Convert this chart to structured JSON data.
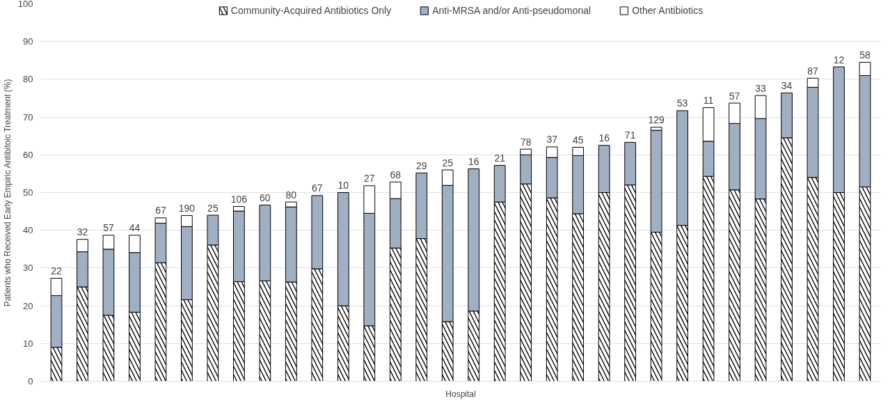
{
  "chart_data": {
    "type": "bar",
    "stacked": true,
    "xlabel": "Hospital",
    "ylabel": "Patients who Received Early Empiric Antibitoic Treatment (%)",
    "categories": [
      null,
      null,
      null,
      null,
      null,
      null,
      null,
      null,
      null,
      null,
      null,
      null,
      null,
      null,
      null,
      null,
      null,
      null,
      null,
      null,
      null,
      null,
      null,
      null,
      null,
      null,
      null,
      null,
      null,
      null,
      null,
      null
    ],
    "series": [
      {
        "name": "Community-Acquired Antibiotics Only",
        "color": "#000000",
        "values": [
          9,
          25,
          17.5,
          18.3,
          31.4,
          21.6,
          36.1,
          26.4,
          26.6,
          26.3,
          29.8,
          20,
          14.7,
          35.3,
          37.8,
          15.8,
          18.6,
          47.5,
          52.3,
          48.6,
          44.4,
          50,
          52,
          39.5,
          41.3,
          54.3,
          50.7,
          48.3,
          64.5,
          54,
          50,
          51.5
        ]
      },
      {
        "name": "Anti-MRSA and/or Anti-pseudomonal",
        "color": "#9fb0c2",
        "values": [
          13.7,
          9.3,
          17.5,
          15.8,
          10.5,
          19.4,
          7.9,
          18.7,
          20.1,
          19.9,
          19.4,
          30,
          29.8,
          13.1,
          17.4,
          36.1,
          37.7,
          9.7,
          7.7,
          10.7,
          15.4,
          12.5,
          11.3,
          27,
          30.4,
          9.3,
          17.6,
          21.3,
          11.9,
          23.9,
          33.3,
          29.5
        ]
      },
      {
        "name": "Other Antibiotics",
        "color": "#ffffff",
        "values": [
          4.6,
          3.3,
          3.7,
          4.6,
          1.4,
          2.9,
          null,
          1.2,
          null,
          1.3,
          null,
          null,
          7.3,
          4.4,
          null,
          4.1,
          null,
          null,
          1.5,
          2.8,
          2.2,
          null,
          null,
          0.8,
          null,
          8.9,
          5.4,
          6.1,
          null,
          2.4,
          null,
          3.5
        ]
      }
    ],
    "annotations": [
      "22",
      "32",
      "57",
      "44",
      "67",
      "190",
      "25",
      "106",
      "60",
      "80",
      "67",
      "10",
      "27",
      "68",
      "29",
      "25",
      "16",
      "21",
      "78",
      "37",
      "45",
      "16",
      "71",
      "129",
      "53",
      "11",
      "57",
      "33",
      "34",
      "87",
      "12",
      "58"
    ],
    "ylim": [
      0,
      100
    ],
    "yticks": [
      0,
      10,
      20,
      30,
      40,
      50,
      60,
      70,
      80,
      90,
      100
    ],
    "grid": "y",
    "legend": "top"
  }
}
